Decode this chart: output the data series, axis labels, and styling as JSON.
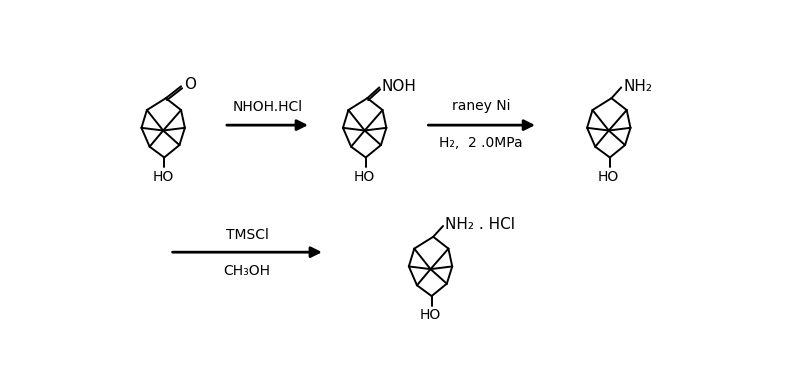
{
  "background_color": "#ffffff",
  "fig_width": 8.0,
  "fig_height": 3.69,
  "dpi": 100,
  "arrow1_label": "NHOH.HCl",
  "arrow2_label_top": "raney Ni",
  "arrow2_label_bottom": "H₂,  2 .0MPa",
  "arrow3_label_top": "TMSCl",
  "arrow3_label_bottom": "CH₃OH",
  "line_color": "#000000",
  "line_width": 1.4,
  "font_size": 10
}
